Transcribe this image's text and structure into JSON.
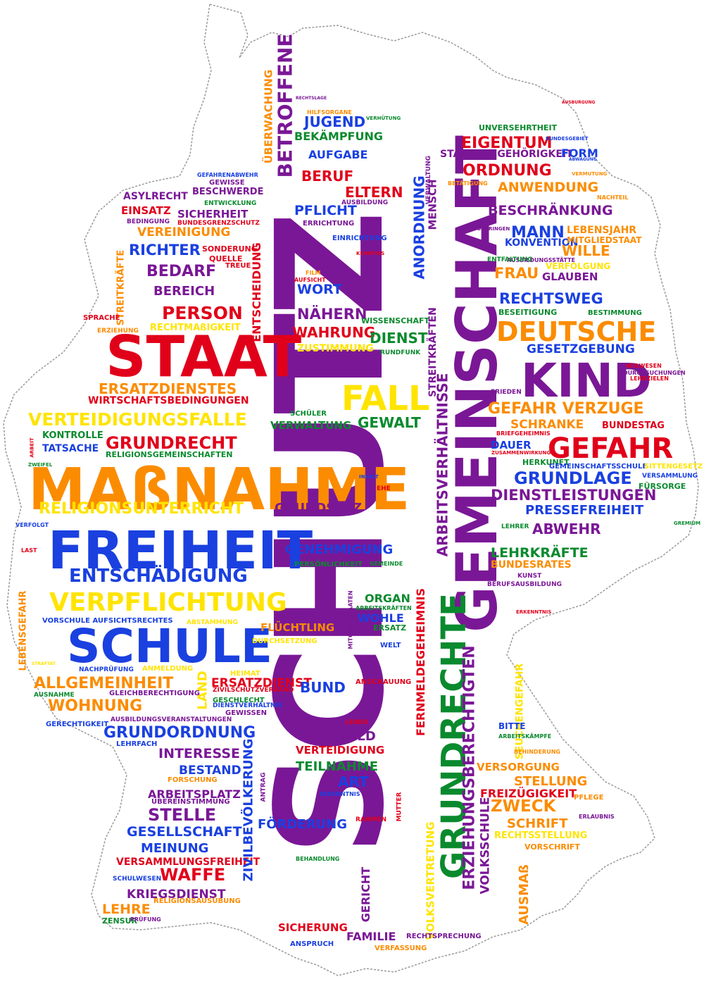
{
  "palette": {
    "red": "#e1001a",
    "orange": "#fb8c00",
    "yellow": "#ffe400",
    "green": "#0a8a2e",
    "blue": "#1a40e0",
    "purple": "#7a1796",
    "outline": "#9a9a9a"
  },
  "words": [
    {
      "text": "SCHUTZ",
      "color": "purple"
    },
    {
      "text": "GEMEINSCHAFT",
      "color": "purple"
    },
    {
      "text": "GRUNDRECHTE",
      "color": "green"
    },
    {
      "text": "MAßNAHME",
      "color": "orange"
    },
    {
      "text": "STAAT",
      "color": "red"
    },
    {
      "text": "FREIHEIT",
      "color": "blue"
    },
    {
      "text": "SCHULE",
      "color": "blue"
    },
    {
      "text": "KIND",
      "color": "purple"
    },
    {
      "text": "DEUTSCHE",
      "color": "orange"
    },
    {
      "text": "GEFAHR",
      "color": "red"
    },
    {
      "text": "FALL",
      "color": "yellow"
    },
    {
      "text": "VERPFLICHTUNG",
      "color": "yellow"
    },
    {
      "text": "ENTSCHÄDIGUNG",
      "color": "blue"
    },
    {
      "text": "RELIGIONSUNTERRICHT",
      "color": "yellow"
    },
    {
      "text": "GRUNDRECHT",
      "color": "red"
    },
    {
      "text": "VERTEIDIGUNGSFALLE",
      "color": "yellow"
    },
    {
      "text": "ERSATZDIENSTES",
      "color": "orange"
    },
    {
      "text": "WIRTSCHAFTSBEDINGUNGEN",
      "color": "red"
    },
    {
      "text": "PERSON",
      "color": "red"
    },
    {
      "text": "BEREICH",
      "color": "purple"
    },
    {
      "text": "BEDARF",
      "color": "purple"
    },
    {
      "text": "RICHTER",
      "color": "blue"
    },
    {
      "text": "VEREINIGUNG",
      "color": "orange"
    },
    {
      "text": "SICHERHEIT",
      "color": "purple"
    },
    {
      "text": "EINSATZ",
      "color": "red"
    },
    {
      "text": "ASYLRECHT",
      "color": "purple"
    },
    {
      "text": "BESCHWERDE",
      "color": "purple"
    },
    {
      "text": "GEWISSE",
      "color": "purple"
    },
    {
      "text": "BETROFFENE",
      "color": "purple"
    },
    {
      "text": "ÜBERWACHUNG",
      "color": "orange"
    },
    {
      "text": "JUGEND",
      "color": "blue"
    },
    {
      "text": "BEKÄMPFUNG",
      "color": "green"
    },
    {
      "text": "AUFGABE",
      "color": "blue"
    },
    {
      "text": "BERUF",
      "color": "red"
    },
    {
      "text": "ELTERN",
      "color": "red"
    },
    {
      "text": "PFLICHT",
      "color": "blue"
    },
    {
      "text": "ANORDNUNG",
      "color": "blue"
    },
    {
      "text": "MENSCH",
      "color": "purple"
    },
    {
      "text": "WORT",
      "color": "blue"
    },
    {
      "text": "NÄHERN",
      "color": "purple"
    },
    {
      "text": "WAHRUNG",
      "color": "red"
    },
    {
      "text": "DIENST",
      "color": "green"
    },
    {
      "text": "ZUSTIMMUNG",
      "color": "yellow"
    },
    {
      "text": "GEWALT",
      "color": "green"
    },
    {
      "text": "VERWALTUNG",
      "color": "green"
    },
    {
      "text": "STREITKRÄFTEN",
      "color": "purple"
    },
    {
      "text": "ARBEITSVERHÄLTNISSE",
      "color": "purple"
    },
    {
      "text": "EIGENTUM",
      "color": "red"
    },
    {
      "text": "STAATSANGEHÖRIGKEIT",
      "color": "purple"
    },
    {
      "text": "FORM",
      "color": "blue"
    },
    {
      "text": "ORDNUNG",
      "color": "red"
    },
    {
      "text": "ANWENDUNG",
      "color": "orange"
    },
    {
      "text": "BESCHRÄNKUNG",
      "color": "purple"
    },
    {
      "text": "MANN",
      "color": "blue"
    },
    {
      "text": "LEBENSJAHR",
      "color": "orange"
    },
    {
      "text": "KONVENTION",
      "color": "blue"
    },
    {
      "text": "WILLE",
      "color": "orange"
    },
    {
      "text": "FRAU",
      "color": "orange"
    },
    {
      "text": "GLAUBEN",
      "color": "purple"
    },
    {
      "text": "RECHTSWEG",
      "color": "blue"
    },
    {
      "text": "GESETZGEBUNG",
      "color": "blue"
    },
    {
      "text": "GEFAHR VERZUGE",
      "color": "orange"
    },
    {
      "text": "SCHRANKE",
      "color": "orange"
    },
    {
      "text": "BUNDESTAG",
      "color": "red"
    },
    {
      "text": "DAUER",
      "color": "blue"
    },
    {
      "text": "GRUNDLAGE",
      "color": "blue"
    },
    {
      "text": "DIENSTLEISTUNGEN",
      "color": "purple"
    },
    {
      "text": "PRESSEFREIHEIT",
      "color": "blue"
    },
    {
      "text": "ABWEHR",
      "color": "purple"
    },
    {
      "text": "LEHRKRÄFTE",
      "color": "green"
    },
    {
      "text": "BUNDESRATES",
      "color": "orange"
    },
    {
      "text": "GRUNDSATZ",
      "color": "purple"
    },
    {
      "text": "GENEHMIGUNG",
      "color": "blue"
    },
    {
      "text": "ORGAN",
      "color": "green"
    },
    {
      "text": "WOHLE",
      "color": "blue"
    },
    {
      "text": "FLÜCHTLING",
      "color": "orange"
    },
    {
      "text": "ALLGEMEINHEIT",
      "color": "orange"
    },
    {
      "text": "WOHNUNG",
      "color": "orange"
    },
    {
      "text": "GRUNDORDNUNG",
      "color": "blue"
    },
    {
      "text": "INTERESSE",
      "color": "purple"
    },
    {
      "text": "BESTAND",
      "color": "blue"
    },
    {
      "text": "ARBEITSPLATZ",
      "color": "purple"
    },
    {
      "text": "STELLE",
      "color": "purple"
    },
    {
      "text": "GESELLSCHAFT",
      "color": "blue"
    },
    {
      "text": "MEINUNG",
      "color": "blue"
    },
    {
      "text": "VERSAMMLUNGSFREIHEIT",
      "color": "red"
    },
    {
      "text": "WAFFE",
      "color": "red"
    },
    {
      "text": "KRIEGSDIENST",
      "color": "purple"
    },
    {
      "text": "LEHRE",
      "color": "orange"
    },
    {
      "text": "ERSATZDIENST",
      "color": "red"
    },
    {
      "text": "BUND",
      "color": "blue"
    },
    {
      "text": "BILD",
      "color": "purple"
    },
    {
      "text": "VERTEIDIGUNG",
      "color": "red"
    },
    {
      "text": "TEILNAHME",
      "color": "green"
    },
    {
      "text": "ART",
      "color": "blue"
    },
    {
      "text": "FÖRDERUNG",
      "color": "blue"
    },
    {
      "text": "ZIVILBEVÖLKERUNG",
      "color": "blue"
    },
    {
      "text": "FERNMELDEGEHEIMNIS",
      "color": "red"
    },
    {
      "text": "ERZIEHUNGSBERECHTIGTEN",
      "color": "purple"
    },
    {
      "text": "VOLKSSCHULE",
      "color": "purple"
    },
    {
      "text": "VERSORGUNG",
      "color": "orange"
    },
    {
      "text": "STELLUNG",
      "color": "orange"
    },
    {
      "text": "FREIZÜGIGKEIT",
      "color": "red"
    },
    {
      "text": "ZWECK",
      "color": "orange"
    },
    {
      "text": "SCHRIFT",
      "color": "orange"
    },
    {
      "text": "SICHERUNG",
      "color": "red"
    },
    {
      "text": "FAMILIE",
      "color": "purple"
    },
    {
      "text": "GERICHT",
      "color": "purple"
    },
    {
      "text": "AUSMAß",
      "color": "orange"
    },
    {
      "text": "VOLKSVERTRETUNG",
      "color": "yellow"
    },
    {
      "text": "LAND",
      "color": "yellow"
    },
    {
      "text": "ENTSCHEIDUNG",
      "color": "red"
    },
    {
      "text": "STREITKRÄFTE",
      "color": "orange"
    },
    {
      "text": "KONTROLLE",
      "color": "green"
    },
    {
      "text": "TATSACHE",
      "color": "blue"
    },
    {
      "text": "SEUCHENGEFAHR",
      "color": "yellow"
    },
    {
      "text": "LEBENSGEFAHR",
      "color": "orange"
    },
    {
      "text": "RELIGIONSGEMEINSCHAFTEN",
      "color": "green"
    },
    {
      "text": "WISSENSCHAFT",
      "color": "green"
    },
    {
      "text": "RECHTMAßIGKEIT",
      "color": "yellow"
    },
    {
      "text": "PERSÖNLICHKEIT",
      "color": "green"
    },
    {
      "text": "VORSCHULE AUFSICHTSRECHTES",
      "color": "blue"
    },
    {
      "text": "UNVERSEHRTHEIT",
      "color": "green"
    },
    {
      "text": "MITGLIEDSTAAT",
      "color": "orange"
    },
    {
      "text": "VERFOLGUNG",
      "color": "yellow"
    },
    {
      "text": "HERKUNFT",
      "color": "green"
    },
    {
      "text": "FÜRSORGE",
      "color": "green"
    },
    {
      "text": "LEHRER",
      "color": "green"
    },
    {
      "text": "GESCHLECHT",
      "color": "green"
    },
    {
      "text": "ERZIEHUNG",
      "color": "orange"
    },
    {
      "text": "SPRACHE",
      "color": "red"
    },
    {
      "text": "ZENSUR",
      "color": "green"
    },
    {
      "text": "PRÜFUNG",
      "color": "purple"
    },
    {
      "text": "VERFASSUNG",
      "color": "orange"
    },
    {
      "text": "ANSPRUCH",
      "color": "blue"
    },
    {
      "text": "RECHTSPRECHUNG",
      "color": "purple"
    },
    {
      "text": "ANSCHAUUNG",
      "color": "red"
    },
    {
      "text": "HEIMAT",
      "color": "yellow"
    },
    {
      "text": "RECHTSSTELLUNG",
      "color": "yellow"
    },
    {
      "text": "VORSCHRIFT",
      "color": "orange"
    },
    {
      "text": "PFLEGE",
      "color": "orange"
    },
    {
      "text": "BITTE",
      "color": "blue"
    },
    {
      "text": "BESEITIGUNG",
      "color": "green"
    },
    {
      "text": "BESTIMMUNG",
      "color": "green"
    },
    {
      "text": "SONDERUNG",
      "color": "red"
    },
    {
      "text": "QUELLE",
      "color": "red"
    },
    {
      "text": "TREUE",
      "color": "red"
    },
    {
      "text": "RUNDFUNK",
      "color": "green"
    },
    {
      "text": "SCHÜLER",
      "color": "green"
    },
    {
      "text": "ARBEITSKRÄFTEN",
      "color": "green"
    },
    {
      "text": "ERSATZ",
      "color": "green"
    },
    {
      "text": "WELT",
      "color": "blue"
    },
    {
      "text": "ABSTAMMUNG",
      "color": "yellow"
    },
    {
      "text": "DURCHSETZUNG",
      "color": "yellow"
    },
    {
      "text": "ANMELDUNG",
      "color": "yellow"
    },
    {
      "text": "AUSNAHME",
      "color": "green"
    },
    {
      "text": "GLEICHBERECHTIGUNG",
      "color": "purple"
    },
    {
      "text": "GERECHTIGKEIT",
      "color": "blue"
    },
    {
      "text": "AUSBILDUNGSVERANSTALTUNGEN",
      "color": "purple"
    },
    {
      "text": "LEHRFACH",
      "color": "blue"
    },
    {
      "text": "FORSCHUNG",
      "color": "orange"
    },
    {
      "text": "ÜBEREINSTIMMUNG",
      "color": "purple"
    },
    {
      "text": "BEHANDLUNG",
      "color": "green"
    },
    {
      "text": "SCHULWESEN",
      "color": "blue"
    },
    {
      "text": "RELIGIONSAUSÜBUNG",
      "color": "orange"
    },
    {
      "text": "NACHPRÜFUNG",
      "color": "blue"
    },
    {
      "text": "ZIVILSCHUTZVERBAND",
      "color": "red"
    },
    {
      "text": "DIENSTVERHÄLTNIS",
      "color": "blue"
    },
    {
      "text": "GEWISSEN",
      "color": "purple"
    },
    {
      "text": "LEBEN",
      "color": "red"
    },
    {
      "text": "MUTTER",
      "color": "red"
    },
    {
      "text": "ARBEIT",
      "color": "red"
    },
    {
      "text": "ZWEIFEL",
      "color": "green"
    },
    {
      "text": "VERFOLGT",
      "color": "blue"
    },
    {
      "text": "LAST",
      "color": "red"
    },
    {
      "text": "GEMEINSCHAFTSSCHULE",
      "color": "blue"
    },
    {
      "text": "SITTENGESETZ",
      "color": "yellow"
    },
    {
      "text": "VERSAMMLUNG",
      "color": "blue"
    },
    {
      "text": "FRIEDEN",
      "color": "purple"
    },
    {
      "text": "HEILWESEN",
      "color": "red"
    },
    {
      "text": "KUNST",
      "color": "purple"
    },
    {
      "text": "BERUFSAUSBILDUNG",
      "color": "purple"
    },
    {
      "text": "ARBEITSKÄMPFE",
      "color": "green"
    },
    {
      "text": "BEHINDERUNG",
      "color": "orange"
    },
    {
      "text": "BEKENNTNIS",
      "color": "blue"
    },
    {
      "text": "ERLAUBNIS",
      "color": "purple"
    },
    {
      "text": "ANTRAG",
      "color": "purple"
    },
    {
      "text": "RAHMEN",
      "color": "red"
    },
    {
      "text": "VERWALTUNG",
      "color": "purple"
    },
    {
      "text": "EHE",
      "color": "red"
    },
    {
      "text": "INHALT",
      "color": "blue"
    },
    {
      "text": "BRIEFGEHEIMNIS",
      "color": "red"
    },
    {
      "text": "DURCHSUCHUNGEN",
      "color": "purple"
    },
    {
      "text": "AUSBILDUNG",
      "color": "purple"
    },
    {
      "text": "EINRICHTUNG",
      "color": "blue"
    },
    {
      "text": "ERRICHTUNG",
      "color": "purple"
    },
    {
      "text": "BUNDESGRENZSCHUTZ",
      "color": "red"
    },
    {
      "text": "BEDINGUNG",
      "color": "purple"
    },
    {
      "text": "GEFAHRENABWEHR",
      "color": "blue"
    },
    {
      "text": "ENTWICKLUNG",
      "color": "green"
    },
    {
      "text": "AUSBILDUNGSSTÄTTE",
      "color": "purple"
    },
    {
      "text": "ENTFALTUNG",
      "color": "green"
    },
    {
      "text": "VERMUTUNG",
      "color": "orange"
    },
    {
      "text": "NACHTEIL",
      "color": "orange"
    },
    {
      "text": "BETÄTIGUNG",
      "color": "orange"
    },
    {
      "text": "VORBRINGEN",
      "color": "purple"
    },
    {
      "text": "MITGLIEDSTAATEN",
      "color": "purple"
    },
    {
      "text": "VERHÜTUNG",
      "color": "green"
    },
    {
      "text": "BUNDESGEBIET",
      "color": "blue"
    },
    {
      "text": "ABWÄGUNG",
      "color": "blue"
    },
    {
      "text": "KENNTNIS",
      "color": "red"
    },
    {
      "text": "AUFSICHT",
      "color": "red"
    },
    {
      "text": "FILM",
      "color": "orange"
    },
    {
      "text": "DEUTSCHER",
      "color": "purple"
    },
    {
      "text": "GEMEINDE",
      "color": "green"
    },
    {
      "text": "STRAFTAT",
      "color": "yellow"
    },
    {
      "text": "HILFSORGANE",
      "color": "orange"
    },
    {
      "text": "RECHTSLAGE",
      "color": "purple"
    },
    {
      "text": "AUSBURGUNG",
      "color": "red"
    },
    {
      "text": "LEHRZIELEN",
      "color": "red"
    },
    {
      "text": "ZUSAMMENWIRKUNG",
      "color": "red"
    },
    {
      "text": "GREMIUM",
      "color": "green"
    },
    {
      "text": "ERKENNTNIS",
      "color": "red"
    }
  ]
}
